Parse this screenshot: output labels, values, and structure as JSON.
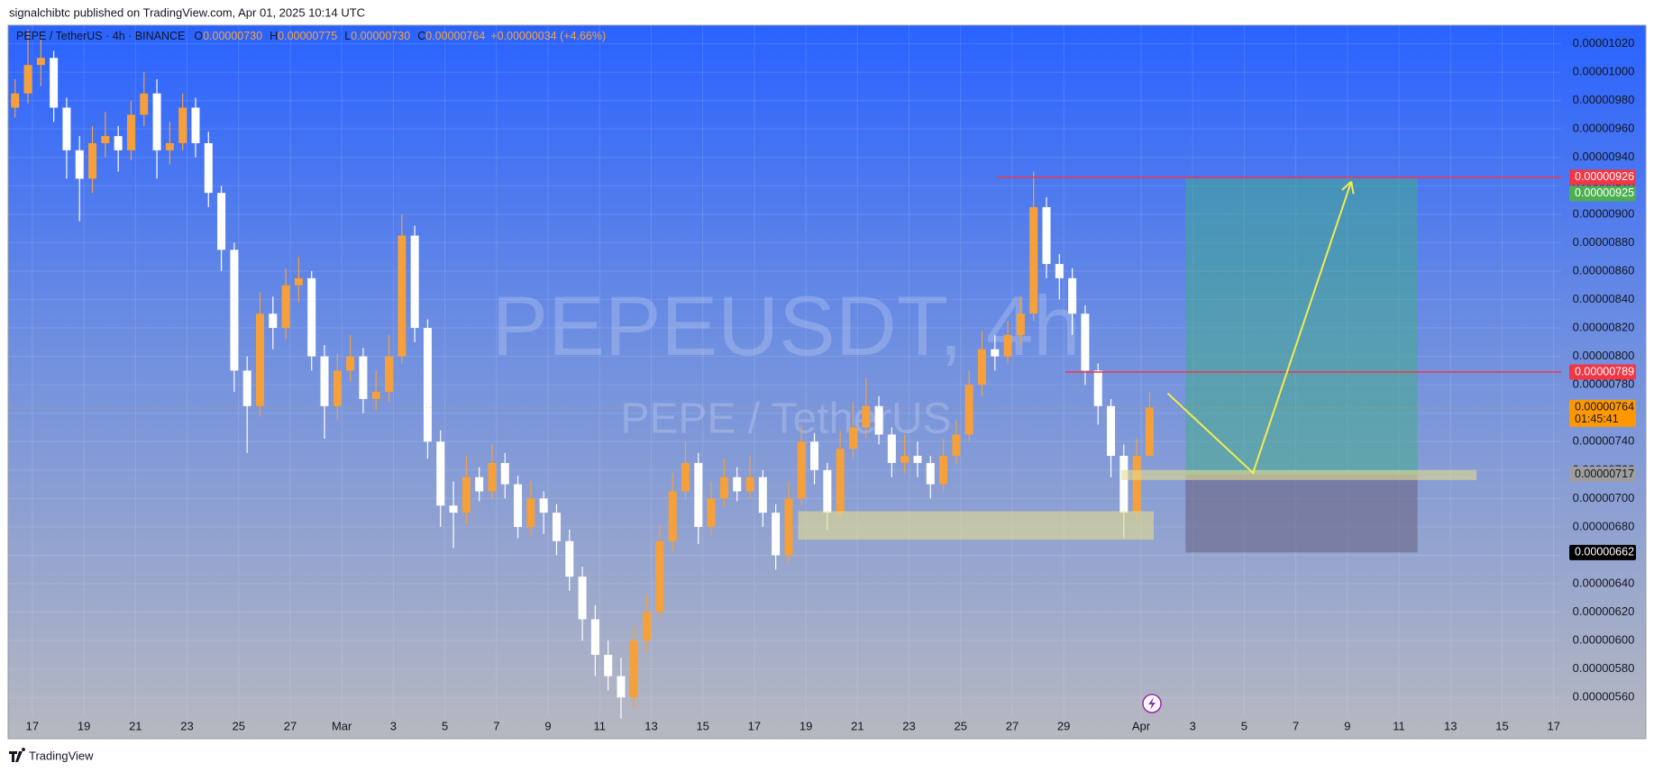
{
  "header": {
    "publisher": "signalchibtc published on TradingView.com, Apr 01, 2025 10:14 UTC"
  },
  "footer": {
    "brand": "TradingView"
  },
  "chart_data": {
    "type": "candlestick",
    "symbol": "PEPE / TetherUS · 4h · BINANCE",
    "ohlc_legend": [
      {
        "key": "O",
        "value": "0.00000730"
      },
      {
        "key": "H",
        "value": "0.00000775"
      },
      {
        "key": "L",
        "value": "0.00000730"
      },
      {
        "key": "C",
        "value": "0.00000764"
      }
    ],
    "change": "+0.00000034 (+4.66%)",
    "watermark": "PEPEUSDT, 4h",
    "watermark_sub": "PEPE / TetherUS",
    "up_color": "#f5a03a",
    "down_color": "#ffffff",
    "x": [
      16.33,
      16.83,
      17.33,
      17.83,
      18.33,
      18.83,
      19.33,
      19.83,
      20.33,
      20.83,
      21.33,
      21.83,
      22.33,
      22.83,
      23.33,
      23.83,
      24.33,
      24.83,
      25.33,
      25.83,
      26.33,
      26.83,
      27.33,
      27.83,
      28.33,
      28.83,
      29.33,
      29.83,
      30.33,
      30.83,
      31.33,
      31.83,
      32.33,
      32.83,
      33.33,
      33.83,
      34.33,
      34.83,
      35.33,
      35.83,
      36.33,
      36.83,
      37.33,
      37.83,
      38.33,
      38.83,
      39.33,
      39.83,
      40.33,
      40.83,
      41.33,
      41.83,
      42.33,
      42.83,
      43.33,
      43.83,
      44.33,
      44.83,
      45.33,
      45.83,
      46.33,
      46.83,
      47.33,
      47.83,
      48.33,
      48.83,
      49.33,
      49.83,
      50.33,
      50.83,
      51.33,
      51.83,
      52.33,
      52.83,
      53.33,
      53.83,
      54.33,
      54.83,
      55.33,
      55.83,
      56.33,
      56.83,
      57.33,
      57.83,
      58.33,
      58.83,
      59.33,
      59.83,
      60.33
    ],
    "open": [
      9.75e-06,
      9.85e-06,
      1.005e-05,
      1.01e-05,
      9.75e-06,
      9.45e-06,
      9.25e-06,
      9.5e-06,
      9.55e-06,
      9.45e-06,
      9.7e-06,
      9.85e-06,
      9.45e-06,
      9.5e-06,
      9.75e-06,
      9.5e-06,
      9.15e-06,
      8.75e-06,
      7.9e-06,
      7.65e-06,
      8.3e-06,
      8.2e-06,
      8.5e-06,
      8.55e-06,
      8e-06,
      7.65e-06,
      7.9e-06,
      8e-06,
      7.7e-06,
      7.75e-06,
      8e-06,
      8.85e-06,
      8.2e-06,
      7.4e-06,
      6.95e-06,
      6.9e-06,
      7.15e-06,
      7.05e-06,
      7.25e-06,
      7.1e-06,
      6.8e-06,
      7e-06,
      6.9e-06,
      6.7e-06,
      6.45e-06,
      6.15e-06,
      5.9e-06,
      5.75e-06,
      5.6e-06,
      6e-06,
      6.2e-06,
      6.7e-06,
      7.05e-06,
      7.25e-06,
      6.8e-06,
      7e-06,
      7.15e-06,
      7.05e-06,
      7.15e-06,
      6.9e-06,
      6.6e-06,
      7e-06,
      7.4e-06,
      7.2e-06,
      6.9e-06,
      7.35e-06,
      7.5e-06,
      7.65e-06,
      7.45e-06,
      7.25e-06,
      7.3e-06,
      7.25e-06,
      7.1e-06,
      7.3e-06,
      7.45e-06,
      7.8e-06,
      8.05e-06,
      8e-06,
      8.15e-06,
      8.3e-06,
      9.05e-06,
      8.65e-06,
      8.55e-06,
      8.3e-06,
      7.9e-06,
      7.65e-06,
      7.3e-06,
      6.9e-06,
      7.3e-06
    ],
    "high": [
      9.95e-06,
      1.03e-05,
      1.025e-05,
      1.015e-05,
      9.82e-06,
      9.55e-06,
      9.62e-06,
      9.72e-06,
      9.62e-06,
      9.8e-06,
      1e-05,
      9.95e-06,
      9.65e-06,
      9.85e-06,
      9.82e-06,
      9.58e-06,
      9.2e-06,
      8.8e-06,
      8e-06,
      8.45e-06,
      8.42e-06,
      8.62e-06,
      8.7e-06,
      8.6e-06,
      8.08e-06,
      8.02e-06,
      8.15e-06,
      8.06e-06,
      7.9e-06,
      8.15e-06,
      9e-06,
      8.92e-06,
      8.26e-06,
      7.48e-06,
      7.12e-06,
      7.3e-06,
      7.22e-06,
      7.38e-06,
      7.32e-06,
      7.16e-06,
      7.12e-06,
      7.05e-06,
      6.96e-06,
      6.78e-06,
      6.52e-06,
      6.25e-06,
      6e-06,
      5.88e-06,
      6.1e-06,
      6.32e-06,
      6.82e-06,
      7.18e-06,
      7.4e-06,
      7.32e-06,
      7.12e-06,
      7.28e-06,
      7.22e-06,
      7.3e-06,
      7.2e-06,
      6.96e-06,
      7.12e-06,
      7.52e-06,
      7.46e-06,
      7.25e-06,
      7.48e-06,
      7.68e-06,
      7.85e-06,
      7.72e-06,
      7.5e-06,
      7.45e-06,
      7.4e-06,
      7.3e-06,
      7.42e-06,
      7.55e-06,
      7.9e-06,
      8.18e-06,
      8.15e-06,
      8.25e-06,
      8.42e-06,
      9.3e-06,
      9.12e-06,
      8.72e-06,
      8.62e-06,
      8.36e-06,
      7.95e-06,
      7.7e-06,
      7.38e-06,
      7.42e-06,
      7.75e-06
    ],
    "low": [
      9.68e-06,
      9.78e-06,
      9.9e-06,
      9.65e-06,
      9.25e-06,
      8.95e-06,
      9.15e-06,
      9.4e-06,
      9.3e-06,
      9.38e-06,
      9.62e-06,
      9.25e-06,
      9.35e-06,
      9.45e-06,
      9.4e-06,
      9.05e-06,
      8.6e-06,
      7.75e-06,
      7.32e-06,
      7.58e-06,
      8.05e-06,
      8.12e-06,
      8.38e-06,
      7.9e-06,
      7.42e-06,
      7.55e-06,
      7.82e-06,
      7.6e-06,
      7.62e-06,
      7.68e-06,
      7.95e-06,
      8.1e-06,
      7.28e-06,
      6.8e-06,
      6.65e-06,
      6.82e-06,
      6.98e-06,
      7e-06,
      7e-06,
      6.72e-06,
      6.74e-06,
      6.75e-06,
      6.6e-06,
      6.35e-06,
      6e-06,
      5.75e-06,
      5.65e-06,
      5.45e-06,
      5.52e-06,
      5.92e-06,
      6.15e-06,
      6.62e-06,
      6.98e-06,
      6.68e-06,
      6.74e-06,
      6.94e-06,
      6.98e-06,
      7e-06,
      6.8e-06,
      6.5e-06,
      6.55e-06,
      6.95e-06,
      7.1e-06,
      6.78e-06,
      6.86e-06,
      7.28e-06,
      7.42e-06,
      7.38e-06,
      7.15e-06,
      7.18e-06,
      7.15e-06,
      7e-06,
      7.05e-06,
      7.24e-06,
      7.4e-06,
      7.72e-06,
      7.9e-06,
      7.95e-06,
      8.08e-06,
      8.25e-06,
      8.55e-06,
      8.4e-06,
      8.15e-06,
      7.8e-06,
      7.52e-06,
      7.15e-06,
      6.72e-06,
      6.85e-06,
      7.3e-06
    ],
    "close": [
      9.85e-06,
      1.005e-05,
      1.01e-05,
      9.75e-06,
      9.45e-06,
      9.25e-06,
      9.5e-06,
      9.55e-06,
      9.45e-06,
      9.7e-06,
      9.85e-06,
      9.45e-06,
      9.5e-06,
      9.75e-06,
      9.5e-06,
      9.15e-06,
      8.75e-06,
      7.9e-06,
      7.65e-06,
      8.3e-06,
      8.2e-06,
      8.5e-06,
      8.55e-06,
      8e-06,
      7.65e-06,
      7.9e-06,
      8e-06,
      7.7e-06,
      7.75e-06,
      8e-06,
      8.85e-06,
      8.2e-06,
      7.4e-06,
      6.95e-06,
      6.9e-06,
      7.15e-06,
      7.05e-06,
      7.25e-06,
      7.1e-06,
      6.8e-06,
      7e-06,
      6.9e-06,
      6.7e-06,
      6.45e-06,
      6.15e-06,
      5.9e-06,
      5.75e-06,
      5.6e-06,
      6e-06,
      6.2e-06,
      6.7e-06,
      7.05e-06,
      7.25e-06,
      6.8e-06,
      7e-06,
      7.15e-06,
      7.05e-06,
      7.15e-06,
      6.9e-06,
      6.6e-06,
      7e-06,
      7.4e-06,
      7.2e-06,
      6.9e-06,
      7.35e-06,
      7.5e-06,
      7.65e-06,
      7.45e-06,
      7.25e-06,
      7.3e-06,
      7.25e-06,
      7.1e-06,
      7.3e-06,
      7.45e-06,
      7.8e-06,
      8.05e-06,
      8e-06,
      8.15e-06,
      8.3e-06,
      9.05e-06,
      8.65e-06,
      8.55e-06,
      8.3e-06,
      7.9e-06,
      7.65e-06,
      7.3e-06,
      6.9e-06,
      7.3e-06,
      7.64e-06
    ],
    "xlim": [
      16.06,
      76.29
    ],
    "xticks": [
      17,
      19,
      21,
      23,
      25,
      27,
      {
        "value": 29,
        "label": "Mar"
      },
      {
        "value": 31,
        "label": "3"
      },
      {
        "value": 33,
        "label": "5"
      },
      {
        "value": 35,
        "label": "7"
      },
      {
        "value": 37,
        "label": "9"
      },
      {
        "value": 39,
        "label": "11"
      },
      {
        "value": 41,
        "label": "13"
      },
      {
        "value": 43,
        "label": "15"
      },
      {
        "value": 45,
        "label": "17"
      },
      {
        "value": 47,
        "label": "19"
      },
      {
        "value": 49,
        "label": "21"
      },
      {
        "value": 51,
        "label": "23"
      },
      {
        "value": 53,
        "label": "25"
      },
      {
        "value": 55,
        "label": "27"
      },
      {
        "value": 57,
        "label": "29"
      },
      {
        "value": 60,
        "label": "Apr"
      },
      {
        "value": 62,
        "label": "3"
      },
      {
        "value": 64,
        "label": "5"
      },
      {
        "value": 66,
        "label": "7"
      },
      {
        "value": 68,
        "label": "9"
      },
      {
        "value": 70,
        "label": "11"
      },
      {
        "value": 72,
        "label": "13"
      },
      {
        "value": 74,
        "label": "15"
      },
      {
        "value": 76,
        "label": "17"
      }
    ],
    "ylim": [
      5.31e-06,
      1.033e-05
    ],
    "yticks": [
      {
        "value": 5.6e-06,
        "label": "0.00000560"
      },
      {
        "value": 5.8e-06,
        "label": "0.00000580"
      },
      {
        "value": 6e-06,
        "label": "0.00000600"
      },
      {
        "value": 6.2e-06,
        "label": "0.00000620"
      },
      {
        "value": 6.4e-06,
        "label": "0.00000640"
      },
      {
        "value": 6.6e-06,
        "label": "0.00000660"
      },
      {
        "value": 6.8e-06,
        "label": "0.00000680"
      },
      {
        "value": 7e-06,
        "label": "0.00000700"
      },
      {
        "value": 7.2e-06,
        "label": "0.00000720"
      },
      {
        "value": 7.4e-06,
        "label": "0.00000740"
      },
      {
        "value": 7.6e-06,
        "label": "0.00000760"
      },
      {
        "value": 7.8e-06,
        "label": "0.00000780"
      },
      {
        "value": 8e-06,
        "label": "0.00000800"
      },
      {
        "value": 8.2e-06,
        "label": "0.00000820"
      },
      {
        "value": 8.4e-06,
        "label": "0.00000840"
      },
      {
        "value": 8.6e-06,
        "label": "0.00000860"
      },
      {
        "value": 8.8e-06,
        "label": "0.00000880"
      },
      {
        "value": 9e-06,
        "label": "0.00000900"
      },
      {
        "value": 9.2e-06,
        "label": "0.00000920"
      },
      {
        "value": 9.4e-06,
        "label": "0.00000940"
      },
      {
        "value": 9.6e-06,
        "label": "0.00000960"
      },
      {
        "value": 9.8e-06,
        "label": "0.00000980"
      },
      {
        "value": 1e-05,
        "label": "0.00001000"
      },
      {
        "value": 1.02e-05,
        "label": "0.00001020"
      }
    ],
    "grid": true,
    "price_tags": [
      {
        "value": 9.26e-06,
        "label": "0.00000926",
        "color": "#f23645",
        "text_color": "#ffffff"
      },
      {
        "value": 9.25e-06,
        "label": "0.00000925",
        "color": "#4caf50",
        "text_color": "#ffffff"
      },
      {
        "value": 7.89e-06,
        "label": "0.00000789",
        "color": "#f23645",
        "text_color": "#ffffff"
      },
      {
        "value": 7.64e-06,
        "label": "0.00000764",
        "color": "#ff9800",
        "text_color": "#131722",
        "countdown": "01:45:41"
      },
      {
        "value": 7.17e-06,
        "label": "0.00000717",
        "color": "#9e9e9e",
        "text_color": "#131722"
      },
      {
        "value": 6.62e-06,
        "label": "0.00000662",
        "color": "#000000",
        "text_color": "#ffffff"
      }
    ],
    "drawings": {
      "rays": [
        {
          "start": 54.4,
          "price": 9.26e-06,
          "color": "#f23645"
        },
        {
          "start": 57.06,
          "price": 7.89e-06,
          "color": "#f23645"
        }
      ],
      "position": {
        "start": 61.72,
        "end": 70.72,
        "target": 9.25e-06,
        "entry": 7.17e-06,
        "stop": 6.62e-06,
        "target_color": "#3fae86",
        "stop_color": "#6b6585"
      },
      "zones": [
        {
          "start": 46.7,
          "end": 60.49,
          "top": 6.91e-06,
          "bottom": 6.71e-06,
          "color": "#e4dc8e"
        },
        {
          "start": 59.23,
          "end": 73.01,
          "top": 7.2e-06,
          "bottom": 7.13e-06,
          "color": "#e4dc8e"
        }
      ],
      "arrow": {
        "x": [
          61.03,
          64.34,
          68.15
        ],
        "y": [
          7.74e-06,
          7.18e-06,
          9.23e-06
        ],
        "color": "#f4ec4c"
      }
    }
  }
}
